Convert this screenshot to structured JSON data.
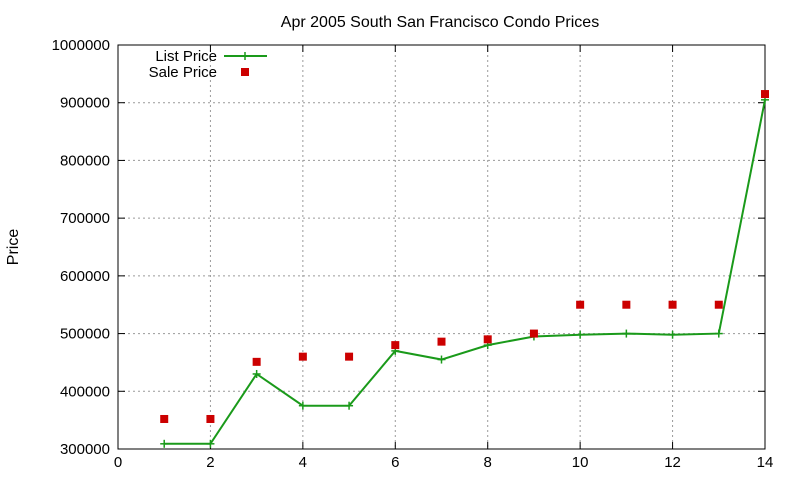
{
  "chart_data": {
    "type": "line",
    "title": "Apr 2005 South San Francisco Condo Prices",
    "xlabel": "",
    "ylabel": "Price",
    "xlim": [
      0,
      14
    ],
    "ylim": [
      300000,
      1000000
    ],
    "xticks": [
      0,
      2,
      4,
      6,
      8,
      10,
      12,
      14
    ],
    "yticks": [
      300000,
      400000,
      500000,
      600000,
      700000,
      800000,
      900000,
      1000000
    ],
    "grid": true,
    "legend_position": "top-left",
    "series": [
      {
        "name": "List Price",
        "style": "linespoints",
        "color": "#1a9a1a",
        "x": [
          1,
          2,
          3,
          4,
          5,
          6,
          7,
          8,
          9,
          10,
          11,
          12,
          13,
          14
        ],
        "values": [
          309000,
          309000,
          430000,
          375000,
          375000,
          470000,
          455000,
          480000,
          495000,
          498000,
          500000,
          498000,
          500000,
          905000
        ]
      },
      {
        "name": "Sale Price",
        "style": "points",
        "color": "#cc0000",
        "x": [
          1,
          2,
          3,
          4,
          5,
          6,
          7,
          8,
          9,
          10,
          11,
          12,
          13,
          14
        ],
        "values": [
          352000,
          352000,
          451000,
          460000,
          460000,
          480000,
          486000,
          490000,
          500000,
          550000,
          550000,
          550000,
          550000,
          915000
        ]
      }
    ]
  }
}
